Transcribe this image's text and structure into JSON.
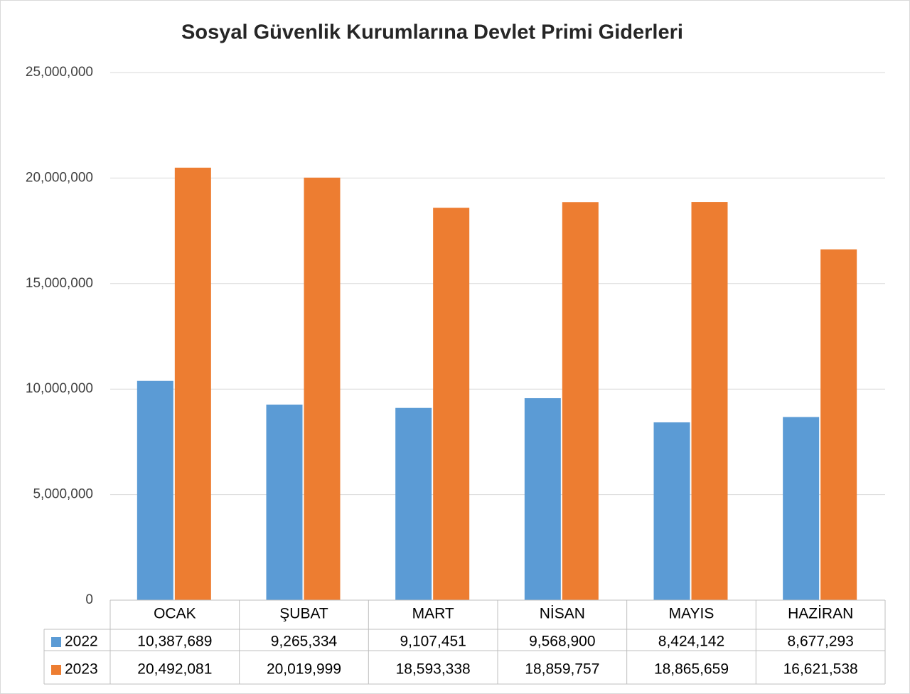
{
  "chart_data": {
    "type": "bar",
    "title": "Sosyal Güvenlik Kurumlarına Devlet Primi Giderleri",
    "categories": [
      "OCAK",
      "ŞUBAT",
      "MART",
      "NİSAN",
      "MAYIS",
      "HAZİRAN"
    ],
    "series": [
      {
        "name": "2022",
        "color": "#5b9bd5",
        "values": [
          10387689,
          9265334,
          9107451,
          9568900,
          8424142,
          8677293
        ],
        "value_labels": [
          "10,387,689",
          "9,265,334",
          "9,107,451",
          "9,568,900",
          "8,424,142",
          "8,677,293"
        ]
      },
      {
        "name": "2023",
        "color": "#ed7d31",
        "values": [
          20492081,
          20019999,
          18593338,
          18859757,
          18865659,
          16621538
        ],
        "value_labels": [
          "20,492,081",
          "20,019,999",
          "18,593,338",
          "18,859,757",
          "18,865,659",
          "16,621,538"
        ]
      }
    ],
    "ylim": [
      0,
      25000000
    ],
    "yticks": [
      0,
      {
        "value": 5000000,
        "label": "5,000,000"
      },
      {
        "value": 10000000,
        "label": "10,000,000"
      },
      {
        "value": 15000000,
        "label": "15,000,000"
      },
      {
        "value": 20000000,
        "label": "20,000,000"
      },
      {
        "value": 25000000,
        "label": "25,000,000"
      }
    ],
    "grid": true
  }
}
